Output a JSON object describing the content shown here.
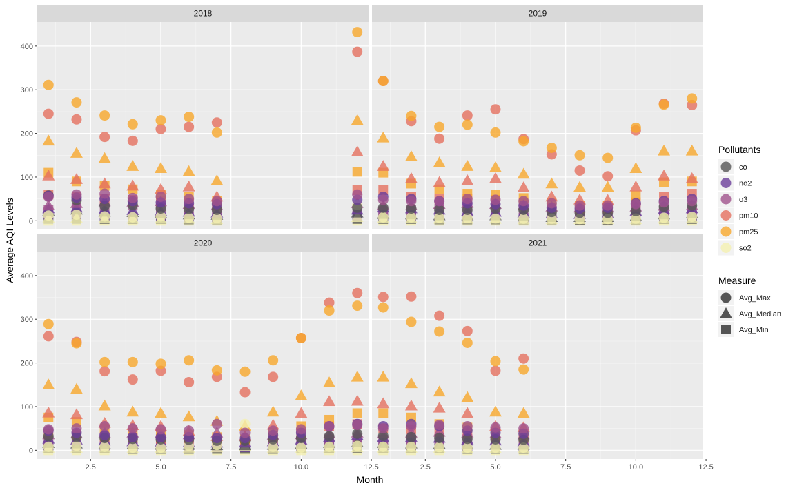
{
  "chart_data": {
    "type": "scatter",
    "xlabel": "Month",
    "ylabel": "Average AQI Levels",
    "xlim": [
      0.6,
      12.4
    ],
    "ylim": [
      -20,
      455
    ],
    "x_ticks": [
      "2.5",
      "5.0",
      "7.5",
      "10.0",
      "12.5"
    ],
    "x_tick_values": [
      2.5,
      5,
      7.5,
      10,
      12.5
    ],
    "y_ticks": [
      "0",
      "100",
      "200",
      "300",
      "400"
    ],
    "y_tick_values": [
      0,
      100,
      200,
      300,
      400
    ],
    "grid": true,
    "legend_position": "right",
    "facets": [
      "2018",
      "2019",
      "2020",
      "2021"
    ],
    "pollutant_legend": {
      "title": "Pollutants",
      "items": [
        {
          "name": "co",
          "color": "#000004"
        },
        {
          "name": "no2",
          "color": "#3B0F70"
        },
        {
          "name": "o3",
          "color": "#8C2981"
        },
        {
          "name": "pm10",
          "color": "#DE4968"
        },
        {
          "name": "pm25",
          "color": "#FE9F3A"
        },
        {
          "name": "so2",
          "color": "#FCFDBF"
        }
      ]
    },
    "measure_legend": {
      "title": "Measure",
      "items": [
        {
          "name": "Avg_Max",
          "shape": "circle"
        },
        {
          "name": "Avg_Median",
          "shape": "triangle"
        },
        {
          "name": "Avg_Min",
          "shape": "square"
        }
      ]
    },
    "point_colors": {
      "co": "#555555",
      "no2": "#6A3D9A",
      "o3": "#A0528C",
      "pm10": "#E5705F",
      "pm25": "#F7A82C",
      "so2": "#F4F0B0"
    },
    "series": {
      "2018": {
        "months": [
          1,
          2,
          3,
          4,
          5,
          6,
          7,
          12
        ],
        "Avg_Max": {
          "co": [
            58,
            47,
            34,
            36,
            28,
            27,
            25,
            30
          ],
          "no2": [
            57,
            53,
            50,
            45,
            42,
            40,
            38,
            48
          ],
          "o3": [
            55,
            60,
            62,
            52,
            55,
            50,
            45,
            60
          ],
          "pm10": [
            245,
            232,
            192,
            183,
            210,
            215,
            225,
            387
          ],
          "pm25": [
            311,
            271,
            241,
            221,
            230,
            238,
            202,
            432
          ],
          "so2": [
            12,
            14,
            10,
            8,
            10,
            7,
            6,
            36
          ]
        },
        "Avg_Median": {
          "co": [
            22,
            25,
            20,
            19,
            17,
            14,
            13,
            18
          ],
          "no2": [
            28,
            30,
            26,
            24,
            22,
            20,
            18,
            25
          ],
          "o3": [
            35,
            40,
            44,
            43,
            44,
            38,
            35,
            40
          ],
          "pm10": [
            103,
            95,
            85,
            80,
            72,
            78,
            55,
            158
          ],
          "pm25": [
            183,
            155,
            143,
            125,
            120,
            113,
            92,
            230
          ],
          "so2": [
            6,
            6,
            5,
            4,
            4,
            4,
            3,
            8
          ]
        },
        "Avg_Min": {
          "co": [
            5,
            5,
            4,
            4,
            4,
            3,
            3,
            4
          ],
          "no2": [
            14,
            15,
            12,
            10,
            10,
            9,
            8,
            12
          ],
          "o3": [
            25,
            30,
            34,
            35,
            30,
            27,
            25,
            28
          ],
          "pm10": [
            60,
            55,
            50,
            48,
            45,
            40,
            35,
            70
          ],
          "pm25": [
            110,
            90,
            80,
            72,
            60,
            55,
            45,
            112
          ],
          "so2": [
            0,
            0,
            0,
            0,
            0,
            0,
            0,
            0
          ]
        }
      },
      "2019": {
        "months": [
          1,
          2,
          3,
          4,
          5,
          6,
          7,
          8,
          9,
          10,
          11,
          12
        ],
        "Avg_Max": {
          "co": [
            30,
            28,
            25,
            25,
            28,
            25,
            20,
            18,
            18,
            22,
            32,
            35
          ],
          "no2": [
            55,
            50,
            45,
            40,
            38,
            35,
            30,
            28,
            30,
            40,
            45,
            50
          ],
          "o3": [
            48,
            45,
            45,
            50,
            48,
            45,
            40,
            35,
            35,
            38,
            42,
            45
          ],
          "pm10": [
            320,
            228,
            188,
            241,
            255,
            187,
            152,
            115,
            102,
            207,
            268,
            265
          ],
          "pm25": [
            320,
            240,
            215,
            220,
            202,
            182,
            167,
            150,
            144,
            213,
            266,
            280
          ],
          "so2": [
            8,
            8,
            7,
            6,
            5,
            5,
            5,
            4,
            4,
            5,
            7,
            9
          ]
        },
        "Avg_Median": {
          "co": [
            15,
            14,
            12,
            12,
            12,
            10,
            8,
            8,
            8,
            10,
            14,
            16
          ],
          "no2": [
            30,
            28,
            25,
            22,
            20,
            18,
            16,
            15,
            16,
            22,
            26,
            28
          ],
          "o3": [
            35,
            35,
            38,
            40,
            38,
            35,
            32,
            30,
            30,
            32,
            34,
            35
          ],
          "pm10": [
            125,
            97,
            88,
            92,
            97,
            76,
            55,
            48,
            47,
            78,
            103,
            97
          ],
          "pm25": [
            190,
            147,
            133,
            125,
            122,
            107,
            85,
            77,
            77,
            120,
            160,
            160
          ],
          "so2": [
            5,
            5,
            4,
            4,
            4,
            3,
            3,
            3,
            3,
            3,
            4,
            5
          ]
        },
        "Avg_Min": {
          "co": [
            4,
            4,
            3,
            3,
            3,
            3,
            3,
            2,
            2,
            3,
            4,
            4
          ],
          "no2": [
            12,
            10,
            9,
            8,
            8,
            7,
            6,
            6,
            6,
            8,
            10,
            12
          ],
          "o3": [
            22,
            25,
            28,
            30,
            28,
            25,
            22,
            20,
            20,
            22,
            24,
            24
          ],
          "pm10": [
            70,
            55,
            50,
            50,
            48,
            42,
            30,
            28,
            28,
            42,
            55,
            62
          ],
          "pm25": [
            110,
            85,
            72,
            62,
            60,
            52,
            40,
            35,
            35,
            58,
            88,
            90
          ],
          "so2": [
            0,
            0,
            0,
            0,
            0,
            0,
            0,
            0,
            0,
            0,
            0,
            0
          ]
        }
      },
      "2020": {
        "months": [
          1,
          2,
          3,
          4,
          5,
          6,
          7,
          8,
          9,
          10,
          11,
          12
        ],
        "Avg_Max": {
          "co": [
            32,
            30,
            28,
            26,
            25,
            24,
            22,
            22,
            25,
            28,
            32,
            38
          ],
          "no2": [
            45,
            40,
            35,
            30,
            30,
            30,
            28,
            28,
            35,
            40,
            55,
            60
          ],
          "o3": [
            48,
            50,
            55,
            50,
            48,
            45,
            60,
            40,
            45,
            48,
            55,
            58
          ],
          "pm10": [
            261,
            248,
            181,
            162,
            182,
            156,
            168,
            133,
            168,
            257,
            338,
            360
          ],
          "pm25": [
            289,
            245,
            202,
            202,
            198,
            206,
            183,
            180,
            206,
            257,
            320,
            331
          ],
          "so2": [
            8,
            10,
            8,
            6,
            6,
            10,
            12,
            60,
            8,
            6,
            8,
            10
          ]
        },
        "Avg_Median": {
          "co": [
            16,
            15,
            14,
            13,
            12,
            12,
            11,
            11,
            12,
            14,
            16,
            18
          ],
          "no2": [
            26,
            24,
            22,
            20,
            18,
            18,
            17,
            17,
            20,
            24,
            30,
            34
          ],
          "o3": [
            36,
            38,
            40,
            40,
            38,
            36,
            40,
            32,
            35,
            36,
            38,
            40
          ],
          "pm10": [
            86,
            82,
            62,
            57,
            55,
            44,
            32,
            32,
            58,
            85,
            112,
            113
          ],
          "pm25": [
            150,
            140,
            102,
            88,
            85,
            77,
            67,
            55,
            88,
            125,
            155,
            168
          ],
          "so2": [
            5,
            5,
            5,
            4,
            4,
            5,
            6,
            8,
            5,
            4,
            5,
            6
          ]
        },
        "Avg_Min": {
          "co": [
            4,
            4,
            4,
            3,
            3,
            3,
            3,
            3,
            3,
            4,
            4,
            5
          ],
          "no2": [
            10,
            10,
            9,
            8,
            8,
            8,
            7,
            7,
            8,
            10,
            12,
            14
          ],
          "o3": [
            22,
            24,
            26,
            26,
            25,
            24,
            25,
            20,
            22,
            24,
            25,
            26
          ],
          "pm10": [
            38,
            35,
            30,
            28,
            26,
            25,
            20,
            20,
            28,
            40,
            55,
            60
          ],
          "pm25": [
            75,
            65,
            50,
            40,
            38,
            35,
            30,
            25,
            40,
            55,
            70,
            85
          ],
          "so2": [
            0,
            0,
            0,
            0,
            0,
            0,
            0,
            0,
            0,
            0,
            0,
            0
          ]
        }
      },
      "2021": {
        "months": [
          1,
          2,
          3,
          4,
          5,
          6
        ],
        "Avg_Max": {
          "co": [
            33,
            30,
            28,
            26,
            25,
            24
          ],
          "no2": [
            55,
            60,
            55,
            45,
            40,
            38
          ],
          "o3": [
            50,
            55,
            58,
            55,
            52,
            50
          ],
          "pm10": [
            351,
            352,
            308,
            273,
            182,
            210
          ],
          "pm25": [
            327,
            294,
            272,
            246,
            204,
            185
          ],
          "so2": [
            8,
            8,
            7,
            6,
            6,
            6
          ]
        },
        "Avg_Median": {
          "co": [
            16,
            15,
            14,
            13,
            12,
            12
          ],
          "no2": [
            30,
            30,
            28,
            24,
            22,
            20
          ],
          "o3": [
            38,
            40,
            42,
            40,
            38,
            36
          ],
          "pm10": [
            107,
            102,
            97,
            85,
            55,
            52
          ],
          "pm25": [
            168,
            153,
            134,
            121,
            88,
            85
          ],
          "so2": [
            5,
            5,
            5,
            4,
            4,
            4
          ]
        },
        "Avg_Min": {
          "co": [
            4,
            4,
            4,
            3,
            3,
            3
          ],
          "no2": [
            12,
            12,
            10,
            9,
            8,
            8
          ],
          "o3": [
            24,
            25,
            26,
            26,
            24,
            24
          ],
          "pm10": [
            50,
            48,
            42,
            38,
            30,
            28
          ],
          "pm25": [
            85,
            75,
            60,
            52,
            40,
            38
          ],
          "so2": [
            0,
            0,
            0,
            0,
            0,
            0
          ]
        }
      }
    }
  }
}
